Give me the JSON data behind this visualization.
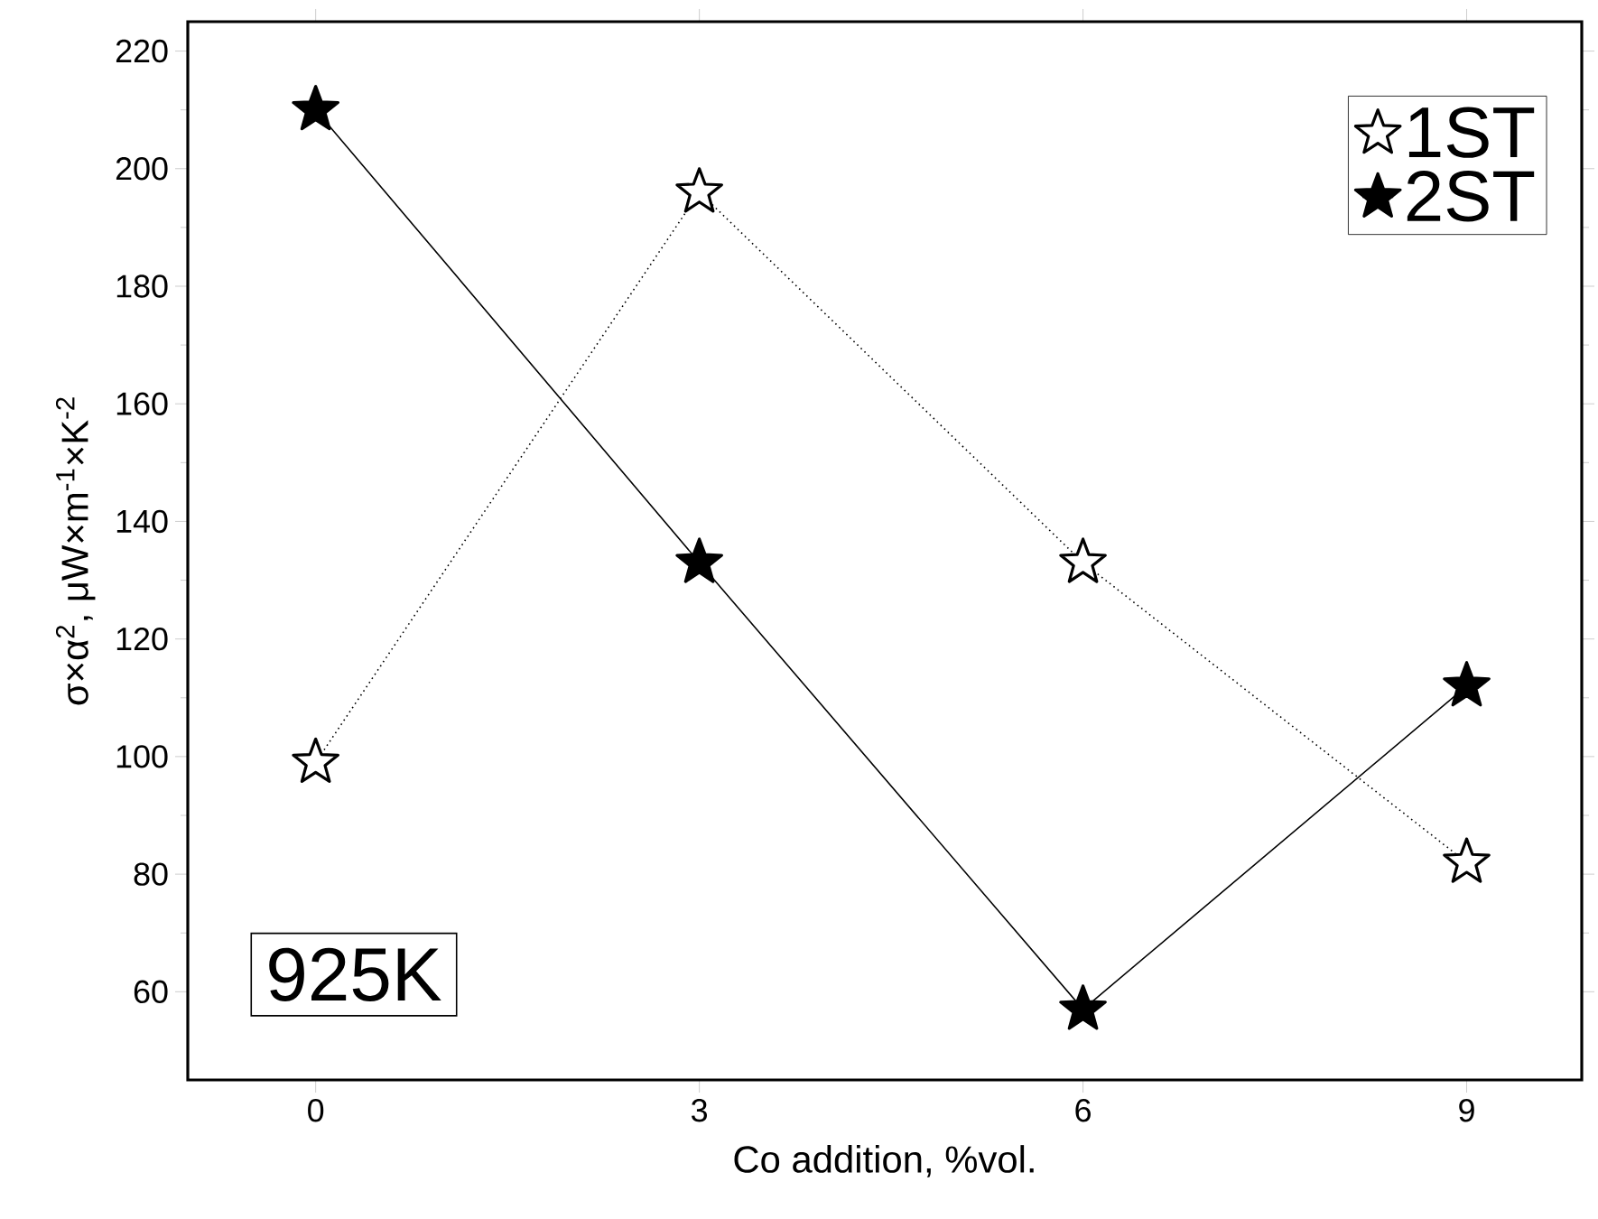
{
  "chart_data": {
    "type": "line",
    "xlabel": "Co addition, %vol.",
    "ylabel": "σ×α$^{2}$, μW×m$^{-1}$×K$^{-2}$",
    "x": [
      0,
      3,
      6,
      9
    ],
    "series": [
      {
        "name": "1ST",
        "color": "#000000",
        "values": [
          99,
          196,
          133,
          82
        ],
        "line_style": "dotted"
      },
      {
        "name": "2ST",
        "color": "#000000",
        "values": [
          210,
          133,
          57,
          112
        ],
        "line_style": "solid"
      }
    ],
    "xlim": [
      -1,
      9.9
    ],
    "xticks": [
      0,
      3,
      6,
      9
    ],
    "ylim": [
      45,
      225
    ],
    "yticks": [
      60,
      80,
      100,
      120,
      140,
      160,
      180,
      200,
      220
    ],
    "marker": "star",
    "legend": "top right",
    "grid": false,
    "annotations": [
      "925K"
    ]
  }
}
